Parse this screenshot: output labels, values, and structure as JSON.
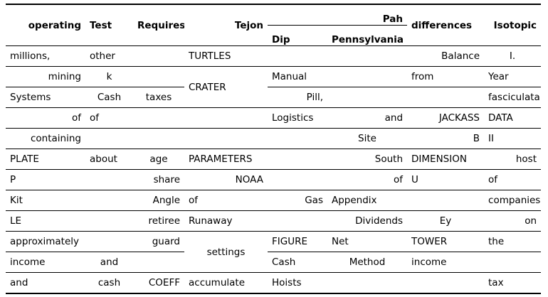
{
  "headers": {
    "operating": "operating",
    "test": "Test",
    "requires": "Requires",
    "tejon": "Tejon",
    "pah": "Pah",
    "dip": "Dip",
    "pennsylvania": "Pennsylvania",
    "differences": "differences",
    "isotopic": "Isotopic"
  },
  "rows": [
    [
      "millions,",
      "other",
      "",
      "TURTLES",
      "",
      "",
      "Balance",
      "I."
    ],
    [
      "mining",
      "k",
      "",
      "CRATER",
      "Manual",
      "",
      "from",
      "Year"
    ],
    [
      "Systems",
      "Cash",
      "taxes",
      "",
      "Pill,",
      "",
      "",
      "fasciculata"
    ],
    [
      "of",
      "of",
      "",
      "",
      "Logistics",
      "and",
      "JACKASS",
      "DATA"
    ],
    [
      "containing",
      "",
      "",
      "",
      "",
      "Site",
      "B",
      "II"
    ],
    [
      "PLATE",
      "about",
      "age",
      "PARAMETERS",
      "",
      "South",
      "DIMENSION",
      "host"
    ],
    [
      "P",
      "",
      "share",
      "NOAA",
      "",
      "of",
      "U",
      "of"
    ],
    [
      "Kit",
      "",
      "Angle",
      "of",
      "Gas",
      "Appendix",
      "",
      "companies"
    ],
    [
      "LE",
      "",
      "retiree",
      "Runaway",
      "",
      "Dividends",
      "Ey",
      "on"
    ],
    [
      "approximately",
      "",
      "guard",
      "settings",
      "FIGURE",
      "Net",
      "TOWER",
      "the"
    ],
    [
      "income",
      "and",
      "",
      "",
      "Cash",
      "Method",
      "income",
      ""
    ],
    [
      "and",
      "cash",
      "COEFF",
      "accumulate",
      "Hoists",
      "",
      "",
      "tax"
    ]
  ]
}
